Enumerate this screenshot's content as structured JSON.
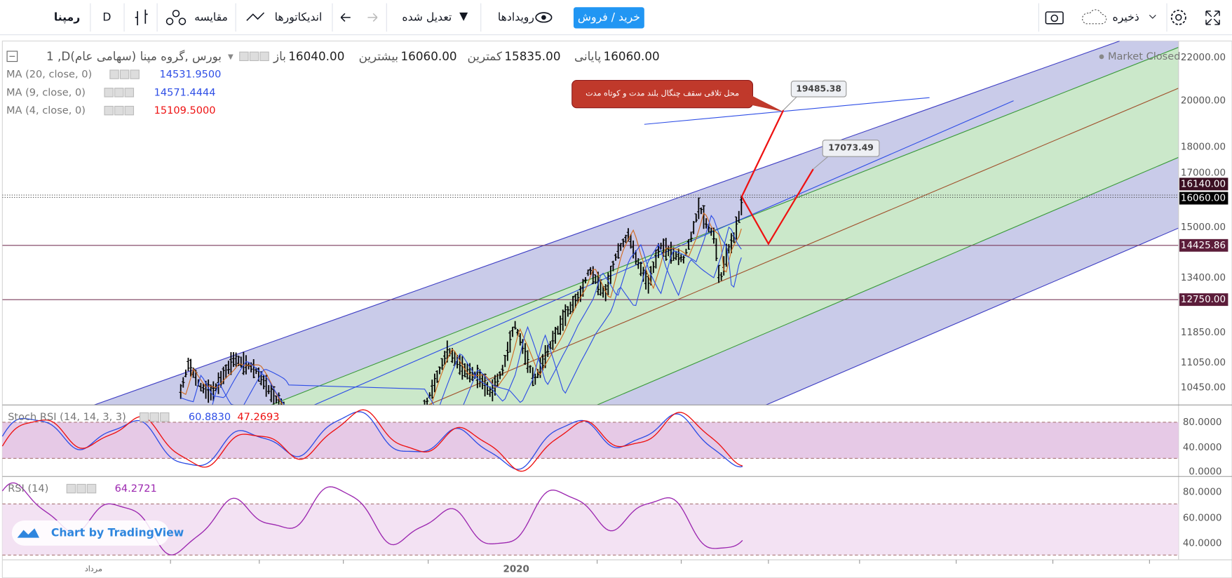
{
  "toolbar": {
    "symbol": "رمپنا",
    "interval": "D",
    "compare": "مقایسه",
    "indicators": "اندیکاتورها",
    "adjusted": "تعدیل شده",
    "events": "رویدادها",
    "trade": "خرید / فروش",
    "save": "ذخیره"
  },
  "legend": {
    "title": "1 ,Dبورس ,گروه مپنا (سهامی عام)",
    "ohlc": [
      {
        "label": "پایانی",
        "value": "16060.00"
      },
      {
        "label": "کمترین",
        "value": "15835.00"
      },
      {
        "label": "بیشترین",
        "value": "16060.00"
      },
      {
        "label": "باز",
        "value": "16040.00"
      }
    ],
    "indicators": [
      {
        "name": "MA (20, close, 0)",
        "value": "14531.9500"
      },
      {
        "name": "MA (9, close, 0)",
        "value": "14571.4444"
      },
      {
        "name": "MA (4, close, 0)",
        "value": "15109.5000"
      }
    ],
    "status": "Market Closed"
  },
  "price_axis": [
    "22000.00",
    "20000.00",
    "18000.00",
    "17000.00",
    "16140.00",
    "16060.00",
    "15000.00",
    "14425.86",
    "13400.00",
    "12750.00",
    "11850.00",
    "11050.00",
    "10450.00"
  ],
  "annotation": {
    "text": "محل تلاقی سقف چنگال بلند مدت و کوتاه مدت",
    "targets": [
      "19485.38",
      "17073.49"
    ]
  },
  "stoch_rsi": {
    "name": "Stoch RSI (14, 14, 3, 3)",
    "values": [
      "60.8830",
      "47.2693"
    ],
    "axis": [
      "80.0000",
      "40.0000",
      "0.0000"
    ]
  },
  "rsi": {
    "name": "RSI (14)",
    "value": "64.2721",
    "axis": [
      "80.0000",
      "60.0000",
      "40.0000"
    ]
  },
  "time_axis": [
    "مرداد",
    "2020"
  ],
  "branding": "Chart by TradingView"
}
